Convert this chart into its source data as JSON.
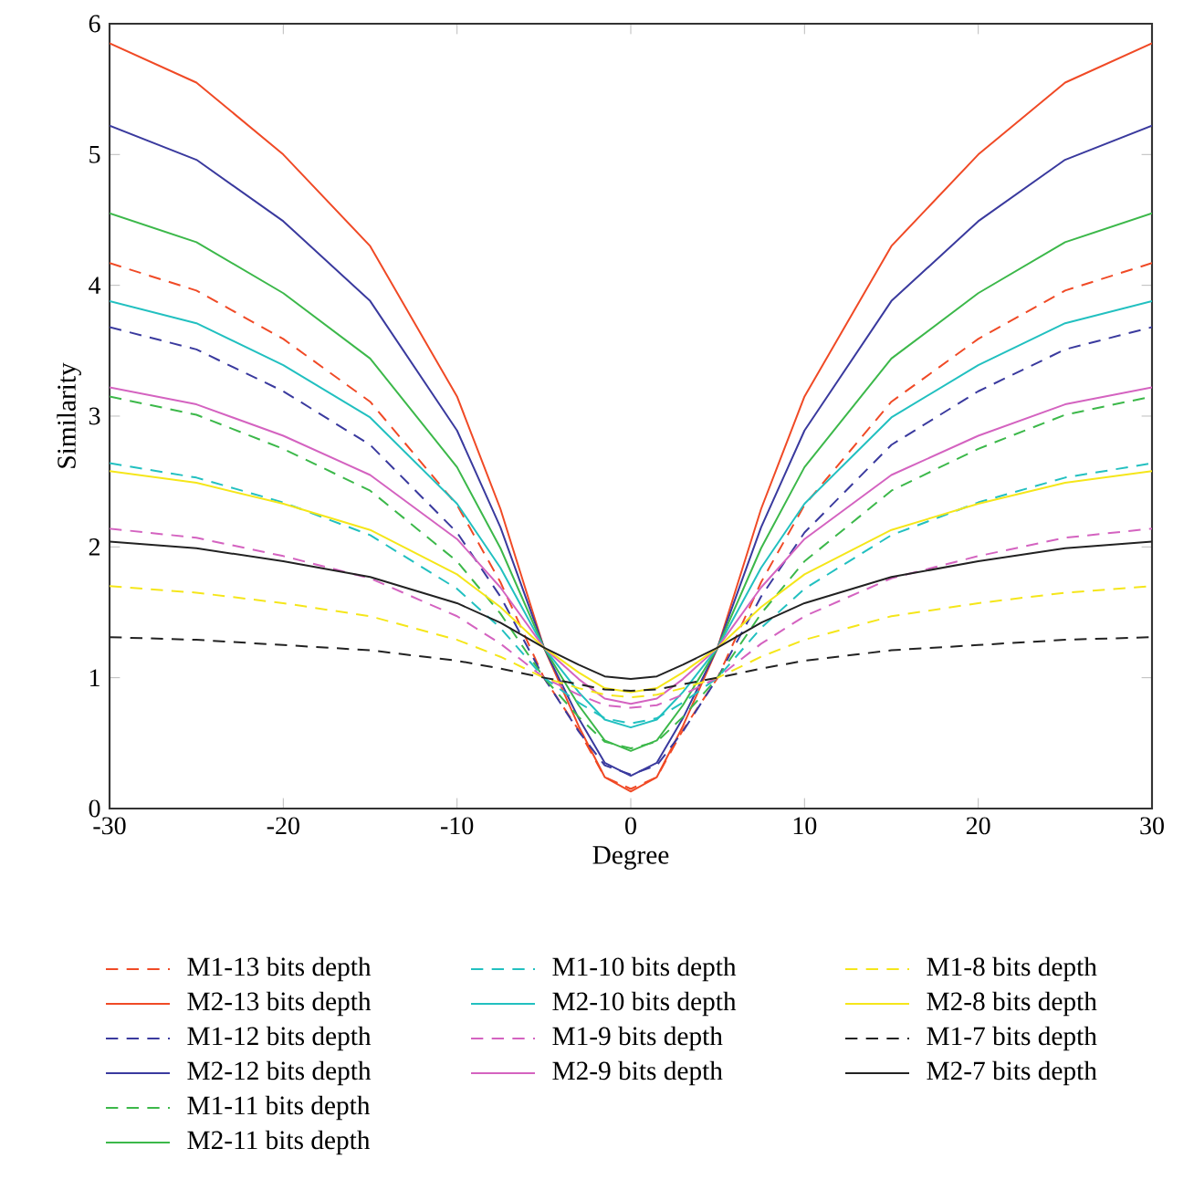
{
  "chart_data": {
    "type": "line",
    "xlabel": "Degree",
    "ylabel": "Similarity",
    "xlim": [
      -30,
      30
    ],
    "ylim": [
      0,
      6
    ],
    "xticks": [
      -30,
      -20,
      -10,
      0,
      10,
      20,
      30
    ],
    "yticks": [
      0,
      1,
      2,
      3,
      4,
      5,
      6
    ],
    "legend": "bottom",
    "marker": "none",
    "x": [
      -30,
      -25,
      -20,
      -15,
      -10,
      -7.5,
      -5,
      -3,
      -1.5,
      0,
      1.5,
      3,
      5,
      7.5,
      10,
      15,
      20,
      25,
      30
    ],
    "series": [
      {
        "name": "M1-13 bits depth",
        "color": "#f04a26",
        "line_style": "dashed",
        "values": [
          4.17,
          3.96,
          3.59,
          3.11,
          2.32,
          1.73,
          1.0,
          0.6,
          0.24,
          0.15,
          0.24,
          0.6,
          1.0,
          1.73,
          2.32,
          3.11,
          3.59,
          3.96,
          4.17
        ]
      },
      {
        "name": "M2-13 bits depth",
        "color": "#f04a26",
        "line_style": "solid",
        "values": [
          5.85,
          5.55,
          5.0,
          4.3,
          3.15,
          2.29,
          1.23,
          0.63,
          0.24,
          0.13,
          0.24,
          0.63,
          1.23,
          2.29,
          3.15,
          4.3,
          5.0,
          5.55,
          5.85
        ]
      },
      {
        "name": "M1-12 bits depth",
        "color": "#3a3a9e",
        "line_style": "dashed",
        "values": [
          3.68,
          3.51,
          3.19,
          2.78,
          2.11,
          1.62,
          1.0,
          0.59,
          0.33,
          0.26,
          0.33,
          0.59,
          1.0,
          1.62,
          2.11,
          2.78,
          3.19,
          3.51,
          3.68
        ]
      },
      {
        "name": "M2-12 bits depth",
        "color": "#3a3a9e",
        "line_style": "solid",
        "values": [
          5.22,
          4.96,
          4.49,
          3.88,
          2.89,
          2.15,
          1.23,
          0.69,
          0.35,
          0.25,
          0.35,
          0.69,
          1.23,
          2.15,
          2.89,
          3.88,
          4.49,
          4.96,
          5.22
        ]
      },
      {
        "name": "M1-11 bits depth",
        "color": "#3cb84a",
        "line_style": "dashed",
        "values": [
          3.15,
          3.01,
          2.75,
          2.43,
          1.89,
          1.49,
          1.0,
          0.7,
          0.51,
          0.46,
          0.51,
          0.7,
          1.0,
          1.49,
          1.89,
          2.43,
          2.75,
          3.01,
          3.15
        ]
      },
      {
        "name": "M2-11 bits depth",
        "color": "#3cb84a",
        "line_style": "solid",
        "values": [
          4.55,
          4.33,
          3.94,
          3.44,
          2.61,
          1.99,
          1.23,
          0.79,
          0.52,
          0.44,
          0.52,
          0.79,
          1.23,
          1.99,
          2.61,
          3.44,
          3.94,
          4.33,
          4.55
        ]
      },
      {
        "name": "M1-10 bits depth",
        "color": "#22c0c0",
        "line_style": "dashed",
        "values": [
          2.64,
          2.53,
          2.34,
          2.09,
          1.68,
          1.38,
          1.0,
          0.81,
          0.69,
          0.65,
          0.69,
          0.81,
          1.0,
          1.38,
          1.68,
          2.09,
          2.34,
          2.53,
          2.64
        ]
      },
      {
        "name": "M2-10 bits depth",
        "color": "#22c0c0",
        "line_style": "solid",
        "values": [
          3.88,
          3.71,
          3.39,
          2.99,
          2.33,
          1.84,
          1.23,
          0.89,
          0.68,
          0.62,
          0.68,
          0.89,
          1.23,
          1.84,
          2.33,
          2.99,
          3.39,
          3.71,
          3.88
        ]
      },
      {
        "name": "M1-9 bits depth",
        "color": "#d463c0",
        "line_style": "dashed",
        "values": [
          2.14,
          2.07,
          1.93,
          1.76,
          1.47,
          1.26,
          1.0,
          0.87,
          0.79,
          0.77,
          0.79,
          0.87,
          1.0,
          1.26,
          1.47,
          1.76,
          1.93,
          2.07,
          2.14
        ]
      },
      {
        "name": "M2-9 bits depth",
        "color": "#d463c0",
        "line_style": "solid",
        "values": [
          3.22,
          3.09,
          2.85,
          2.55,
          2.06,
          1.69,
          1.23,
          0.99,
          0.84,
          0.8,
          0.84,
          0.99,
          1.23,
          1.69,
          2.06,
          2.55,
          2.85,
          3.09,
          3.22
        ]
      },
      {
        "name": "M1-8 bits depth",
        "color": "#f5e61a",
        "line_style": "dashed",
        "values": [
          1.7,
          1.65,
          1.57,
          1.47,
          1.29,
          1.16,
          1.0,
          0.92,
          0.87,
          0.85,
          0.87,
          0.92,
          1.0,
          1.16,
          1.29,
          1.47,
          1.57,
          1.65,
          1.7
        ]
      },
      {
        "name": "M2-8 bits depth",
        "color": "#f5e61a",
        "line_style": "solid",
        "values": [
          2.58,
          2.49,
          2.33,
          2.13,
          1.79,
          1.54,
          1.23,
          1.04,
          0.92,
          0.89,
          0.92,
          1.04,
          1.23,
          1.54,
          1.79,
          2.13,
          2.33,
          2.49,
          2.58
        ]
      },
      {
        "name": "M1-7 bits depth",
        "color": "#222222",
        "line_style": "dashed",
        "values": [
          1.31,
          1.29,
          1.25,
          1.21,
          1.13,
          1.07,
          1.0,
          0.95,
          0.91,
          0.9,
          0.91,
          0.95,
          1.0,
          1.07,
          1.13,
          1.21,
          1.25,
          1.29,
          1.31
        ]
      },
      {
        "name": "M2-7 bits depth",
        "color": "#222222",
        "line_style": "solid",
        "values": [
          2.04,
          1.99,
          1.89,
          1.77,
          1.57,
          1.42,
          1.23,
          1.1,
          1.01,
          0.99,
          1.01,
          1.1,
          1.23,
          1.42,
          1.57,
          1.77,
          1.89,
          1.99,
          2.04
        ]
      }
    ]
  }
}
